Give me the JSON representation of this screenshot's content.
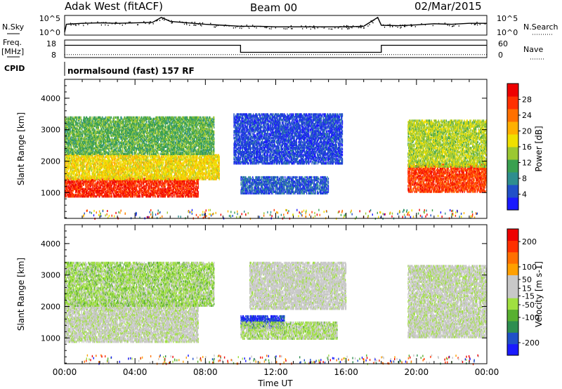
{
  "header": {
    "station": "Adak West (fitACF)",
    "beam": "Beam 00",
    "date": "02/Mar/2015"
  },
  "panel_labels": {
    "nsky": "N.Sky",
    "nsearch": "N.Search",
    "freq": "Freq.",
    "freq_unit": "[MHz]",
    "nave": "Nave",
    "cpid": "CPID",
    "cpid_text": "normalsound (fast) 157 RF"
  },
  "chart_data": [
    {
      "type": "line",
      "panel": "noise",
      "yticks_left": [
        "10^5",
        "10^0"
      ],
      "yticks_right": [
        "10^5",
        "10^0"
      ],
      "series": [
        {
          "name": "N.Sky",
          "style": "solid",
          "x_hours": [
            0,
            0.1,
            1,
            2,
            3,
            4,
            5,
            5.5,
            6,
            7,
            8,
            9,
            10,
            11,
            12,
            13,
            14,
            15,
            16,
            17,
            17.8,
            18,
            19,
            20,
            21,
            22,
            23,
            24
          ],
          "level": [
            0.15,
            0.55,
            0.6,
            0.62,
            0.6,
            0.62,
            0.65,
            0.9,
            0.7,
            0.62,
            0.55,
            0.5,
            0.45,
            0.45,
            0.42,
            0.42,
            0.42,
            0.42,
            0.42,
            0.45,
            0.9,
            0.5,
            0.48,
            0.52,
            0.58,
            0.55,
            0.6,
            0.6
          ]
        },
        {
          "name": "N.Search",
          "style": "dotted"
        }
      ]
    },
    {
      "type": "line",
      "panel": "frequency",
      "yticks_left": [
        18,
        8
      ],
      "yticks_right": [
        60,
        0
      ],
      "series": [
        {
          "name": "Freq.",
          "style": "solid",
          "steps": [
            {
              "from": 0,
              "to": 10,
              "mhz": 15
            },
            {
              "from": 10,
              "to": 18,
              "mhz": 11
            },
            {
              "from": 18,
              "to": 24,
              "mhz": 15
            }
          ]
        },
        {
          "name": "Nave",
          "style": "dotted",
          "value": 10
        }
      ]
    },
    {
      "type": "heatmap",
      "panel": "power",
      "xlabel": "",
      "ylabel": "Slant Range [km]",
      "yticks": [
        1000,
        2000,
        3000,
        4000
      ],
      "ylim": [
        180,
        4600
      ],
      "xlim": [
        0,
        24
      ],
      "colorbar": {
        "label": "Power [dB]",
        "ticks": [
          4,
          8,
          12,
          16,
          20,
          24,
          28
        ],
        "range": [
          0,
          32
        ],
        "colors": [
          "#1a1aff",
          "#2050c8",
          "#2e8e8e",
          "#3aa050",
          "#9bc832",
          "#f0e000",
          "#ffb000",
          "#ff7000",
          "#ff3000",
          "#ee0000"
        ]
      },
      "regions": [
        {
          "t0": 0.0,
          "t1": 7.6,
          "r0": 850,
          "r1": 1450,
          "value": 28
        },
        {
          "t0": 0.0,
          "t1": 8.8,
          "r0": 1400,
          "r1": 2200,
          "value": 18
        },
        {
          "t0": 0.0,
          "t1": 8.5,
          "r0": 2200,
          "r1": 3400,
          "value": 12
        },
        {
          "t0": 9.6,
          "t1": 15.8,
          "r0": 1900,
          "r1": 3500,
          "value": 4
        },
        {
          "t0": 10.0,
          "t1": 15.0,
          "r0": 950,
          "r1": 1500,
          "value": 5
        },
        {
          "t0": 19.5,
          "t1": 24.0,
          "r0": 1000,
          "r1": 1900,
          "value": 27
        },
        {
          "t0": 19.5,
          "t1": 24.0,
          "r0": 1800,
          "r1": 3300,
          "value": 15
        }
      ]
    },
    {
      "type": "heatmap",
      "panel": "velocity",
      "xlabel": "Time UT",
      "ylabel": "Slant Range [km]",
      "yticks": [
        1000,
        2000,
        3000,
        4000
      ],
      "ylim": [
        180,
        4600
      ],
      "xlim": [
        0,
        24
      ],
      "xticks": [
        "00:00",
        "04:00",
        "08:00",
        "12:00",
        "16:00",
        "20:00",
        "00:00"
      ],
      "colorbar": {
        "label": "Velocity [m s-1]",
        "ticks": [
          200,
          100,
          50,
          15,
          -15,
          -50,
          -100,
          -200
        ],
        "range": [
          -250,
          250
        ],
        "colors": [
          "#1a1aff",
          "#2050c8",
          "#2e8e50",
          "#58b030",
          "#a0e040",
          "#c8c8c8",
          "#c8c8c8",
          "#ffa000",
          "#ff7000",
          "#ff3000",
          "#ee0000"
        ]
      },
      "regions": [
        {
          "t0": 0.0,
          "t1": 7.6,
          "r0": 850,
          "r1": 2100,
          "value": 0
        },
        {
          "t0": 0.0,
          "t1": 8.5,
          "r0": 2000,
          "r1": 3400,
          "value": -40
        },
        {
          "t0": 10.0,
          "t1": 12.5,
          "r0": 1300,
          "r1": 1700,
          "value": -200
        },
        {
          "t0": 10.0,
          "t1": 15.5,
          "r0": 950,
          "r1": 1500,
          "value": -30
        },
        {
          "t0": 10.5,
          "t1": 16.0,
          "r0": 1900,
          "r1": 3400,
          "value": 10
        },
        {
          "t0": 19.5,
          "t1": 24.0,
          "r0": 1000,
          "r1": 3300,
          "value": 0
        }
      ]
    }
  ]
}
